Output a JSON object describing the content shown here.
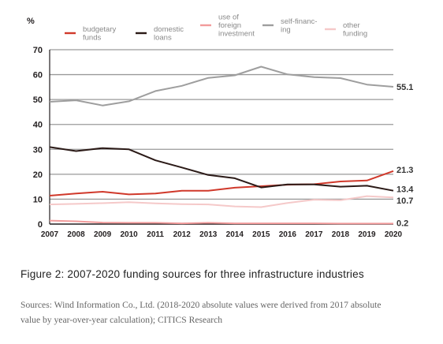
{
  "chart_data": {
    "type": "line",
    "yunit": "%",
    "ylim": [
      0,
      70
    ],
    "yticks": [
      0,
      10,
      20,
      30,
      40,
      50,
      60,
      70
    ],
    "x": [
      "2007",
      "2008",
      "2009",
      "2010",
      "2011",
      "2012",
      "2013",
      "2014",
      "2015",
      "2016",
      "2017",
      "2018",
      "2019",
      "2020"
    ],
    "grid": true,
    "legend_position": "top",
    "series": [
      {
        "name": "budgetary funds",
        "color": "#d0392b",
        "values": [
          11.4,
          12.3,
          13.0,
          11.9,
          12.3,
          13.4,
          13.4,
          14.6,
          15.2,
          15.8,
          16.0,
          17.1,
          17.5,
          21.3
        ],
        "end_label": "21.3"
      },
      {
        "name": "domestic loans",
        "color": "#2b1a17",
        "values": [
          30.9,
          29.3,
          30.5,
          30.0,
          25.6,
          22.7,
          19.7,
          18.4,
          14.7,
          15.9,
          15.9,
          15.0,
          15.4,
          13.4
        ],
        "end_label": "13.4"
      },
      {
        "name": "use of foreign investment",
        "color": "#f29b9b",
        "values": [
          1.4,
          1.1,
          0.6,
          0.5,
          0.5,
          0.3,
          0.5,
          0.3,
          0.3,
          0.3,
          0.3,
          0.2,
          0.2,
          0.2
        ],
        "end_label": "0.2"
      },
      {
        "name": "self-financing",
        "color": "#9e9e9e",
        "values": [
          49.1,
          49.7,
          47.6,
          49.3,
          53.4,
          55.5,
          58.7,
          59.7,
          63.2,
          60.1,
          59.0,
          58.6,
          56.0,
          55.1
        ],
        "end_label": "55.1"
      },
      {
        "name": "other funding",
        "color": "#f5c9c9",
        "values": [
          7.9,
          8.1,
          8.4,
          8.8,
          8.3,
          8.0,
          7.9,
          7.1,
          6.8,
          8.5,
          9.8,
          9.6,
          11.2,
          10.7
        ],
        "end_label": "10.7"
      }
    ],
    "legend": [
      {
        "label_lines": [
          "budgetary",
          "funds"
        ],
        "color": "#d0392b"
      },
      {
        "label_lines": [
          "domestic",
          "loans"
        ],
        "color": "#2b1a17"
      },
      {
        "label_lines": [
          "use of",
          "foreign",
          "investment"
        ],
        "color": "#f29b9b"
      },
      {
        "label_lines": [
          "self-financ-",
          "ing"
        ],
        "color": "#9e9e9e"
      },
      {
        "label_lines": [
          "other",
          "funding"
        ],
        "color": "#f5c9c9"
      }
    ]
  },
  "caption": {
    "title": "Figure 2: 2007-2020 funding sources for three infrastructure industries",
    "source": "Sources: Wind Information Co., Ltd. (2018-2020 absolute values were derived from 2017 absolute value by year-over-year calculation); CITICS Research"
  }
}
